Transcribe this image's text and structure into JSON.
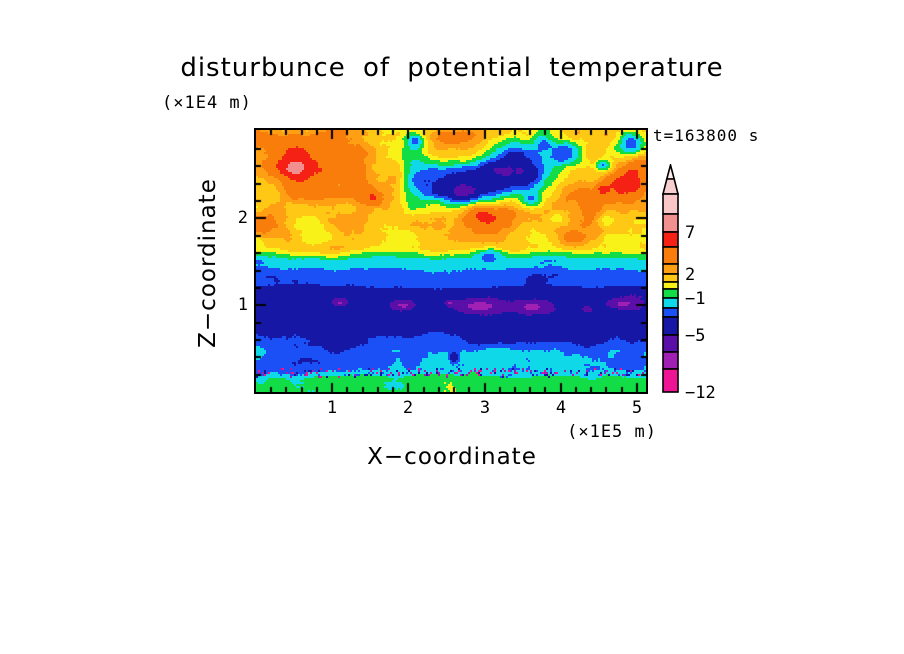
{
  "chart_data": {
    "type": "filled-contour",
    "title": "disturbunce of potential temperature",
    "y_units_label": "(×1E4 m)",
    "x_units_label": "(×1E5 m)",
    "xlabel": "X−coordinate",
    "ylabel": "Z−coordinate",
    "time_label": "t=163800 s",
    "x_range": [
      0,
      5.12
    ],
    "z_range": [
      0,
      3.02
    ],
    "x_major_ticks": [
      "1",
      "2",
      "3",
      "4",
      "5"
    ],
    "x_minor_step": 0.2,
    "z_major_ticks": [
      "1",
      "2"
    ],
    "z_minor_step": 0.2,
    "palette": {
      "levels": [
        9,
        7,
        5,
        3,
        2,
        1,
        0,
        -1,
        -2,
        -3,
        -5,
        -7,
        -9
      ],
      "colors": [
        "#F9C7C7",
        "#F29090",
        "#F52114",
        "#F87D0A",
        "#FFA014",
        "#FFC814",
        "#F8F218",
        "#12DC46",
        "#0FD9E8",
        "#1A50F5",
        "#1717A6",
        "#5A10A8",
        "#A020B4",
        "#EE1493"
      ]
    },
    "colorbar": {
      "segment_heights": [
        20,
        18,
        15,
        17,
        10,
        8,
        7,
        9,
        10,
        9,
        18,
        17,
        17,
        23
      ],
      "arrow_tip_color": "#FDEDED",
      "arrow_base_color": "#F7CFCF",
      "labels": [
        {
          "text": "7",
          "after_segment": 2
        },
        {
          "text": "2",
          "after_segment": 5
        },
        {
          "text": "−1",
          "after_segment": 8
        },
        {
          "text": "−5",
          "after_segment": 11
        },
        {
          "text": "−12",
          "after_segment": 14
        }
      ]
    },
    "field": {
      "base_profile": [
        [
          0,
          -0.5
        ],
        [
          0.14,
          -0.5
        ],
        [
          0.26,
          -1.9
        ],
        [
          0.46,
          -1.9
        ],
        [
          0.62,
          -2.9
        ],
        [
          0.8,
          -4.4
        ],
        [
          1.12,
          -4.4
        ],
        [
          1.24,
          -2.6
        ],
        [
          1.36,
          -2.6
        ],
        [
          1.46,
          -1.6
        ],
        [
          1.52,
          -1.6
        ],
        [
          1.66,
          1.4
        ],
        [
          3.02,
          1.4
        ]
      ],
      "amp_profile": [
        [
          0,
          0.55
        ],
        [
          0.18,
          0.75
        ],
        [
          0.5,
          0.85
        ],
        [
          0.72,
          0.5
        ],
        [
          0.82,
          0.42
        ],
        [
          1.14,
          0.42
        ],
        [
          1.3,
          0.45
        ],
        [
          1.5,
          0.5
        ],
        [
          1.62,
          0.9
        ],
        [
          1.8,
          1.35
        ],
        [
          3.02,
          1.35
        ]
      ],
      "noise": {
        "z_stretch": 1.6,
        "octaves": [
          {
            "scale": 0.62,
            "amp": 1.0
          },
          {
            "scale": 0.26,
            "amp": 0.55
          },
          {
            "scale": 0.085,
            "amp": 0.22
          }
        ]
      },
      "dither": 0.14,
      "features": [
        [
          0.55,
          2.62,
          0.62,
          0.36,
          3.4
        ],
        [
          0.5,
          2.58,
          0.17,
          0.11,
          2.6
        ],
        [
          1.48,
          2.32,
          0.45,
          0.28,
          2.4
        ],
        [
          1.55,
          2.22,
          0.12,
          0.08,
          2.6
        ],
        [
          0.85,
          2.98,
          0.4,
          0.14,
          1.6
        ],
        [
          0.12,
          2.9,
          0.18,
          0.12,
          1.2
        ],
        [
          2.55,
          2.97,
          0.32,
          0.11,
          2.0
        ],
        [
          1.85,
          2.5,
          0.15,
          0.22,
          1.8
        ],
        [
          2.6,
          1.95,
          0.6,
          0.18,
          2.0
        ],
        [
          3.15,
          2.08,
          0.5,
          0.17,
          2.4
        ],
        [
          2.97,
          2.03,
          0.13,
          0.08,
          1.4
        ],
        [
          0.25,
          1.95,
          0.3,
          0.16,
          1.8
        ],
        [
          0.7,
          1.8,
          0.4,
          0.1,
          1.2
        ],
        [
          0.95,
          1.62,
          0.25,
          0.08,
          1.0
        ],
        [
          4.3,
          2.28,
          0.6,
          0.26,
          2.4
        ],
        [
          3.85,
          1.95,
          0.32,
          0.16,
          1.6
        ],
        [
          4.15,
          1.77,
          0.18,
          0.1,
          2.2
        ],
        [
          4.9,
          2.42,
          0.24,
          0.17,
          3.2
        ],
        [
          4.55,
          2.34,
          0.09,
          0.06,
          2.4
        ],
        [
          5.08,
          2.62,
          0.16,
          0.11,
          1.8
        ],
        [
          3.05,
          2.42,
          0.75,
          0.26,
          -5.6
        ],
        [
          3.45,
          2.6,
          0.35,
          0.16,
          -4.0
        ],
        [
          2.5,
          2.38,
          0.4,
          0.2,
          -3.2
        ],
        [
          2.7,
          2.26,
          0.2,
          0.1,
          -3.0
        ],
        [
          4.1,
          2.77,
          0.23,
          0.15,
          -4.6
        ],
        [
          4.92,
          2.88,
          0.2,
          0.14,
          -5.0
        ],
        [
          4.56,
          2.61,
          0.09,
          0.07,
          -3.8
        ],
        [
          3.76,
          2.89,
          0.16,
          0.1,
          -3.0
        ],
        [
          2.1,
          2.9,
          0.12,
          0.09,
          -2.4
        ],
        [
          0.78,
          1.79,
          0.3,
          0.11,
          -2.6
        ],
        [
          3.05,
          1.6,
          0.2,
          0.08,
          -2.2
        ],
        [
          3.62,
          2.19,
          0.15,
          0.09,
          -2.6
        ],
        [
          4.6,
          1.98,
          0.15,
          0.08,
          -2.6
        ],
        [
          3.95,
          2.0,
          0.12,
          0.07,
          -2.4
        ],
        [
          1.15,
          2.12,
          0.22,
          0.11,
          -1.6
        ],
        [
          3.3,
          2.82,
          0.3,
          0.12,
          -1.8
        ],
        [
          4.85,
          1.7,
          0.35,
          0.12,
          -1.6
        ],
        [
          2.15,
          2.55,
          0.3,
          0.35,
          -1.6
        ],
        [
          0.03,
          1.75,
          0.08,
          0.08,
          -1.6
        ],
        [
          2.56,
          3.12,
          2.6,
          0.1,
          -1.8
        ],
        [
          1.92,
          1.0,
          0.15,
          0.06,
          -3.4
        ],
        [
          2.95,
          0.99,
          0.3,
          0.08,
          -3.6
        ],
        [
          3.62,
          0.98,
          0.22,
          0.06,
          -3.2
        ],
        [
          4.82,
          1.02,
          0.17,
          0.05,
          -3.0
        ],
        [
          1.1,
          1.03,
          0.07,
          0.035,
          -2.8
        ],
        [
          2.55,
          1.02,
          0.06,
          0.03,
          -2.8
        ],
        [
          4.35,
          0.95,
          0.05,
          0.03,
          -2.6
        ],
        [
          0.07,
          0.24,
          0.1,
          0.13,
          -0.9
        ],
        [
          1.8,
          0.06,
          0.28,
          0.07,
          -1.1
        ],
        [
          2.6,
          0.4,
          0.05,
          0.05,
          -3.3
        ],
        [
          0.95,
          0.6,
          0.25,
          0.1,
          -1.2
        ],
        [
          3.05,
          0.58,
          0.3,
          0.1,
          -1.1
        ],
        [
          4.35,
          0.6,
          0.25,
          0.1,
          -1.0
        ]
      ],
      "speckles": {
        "seed": 11,
        "count": 260,
        "z_center": 0.225,
        "z_jitter": 0.045,
        "colors": [
          "#1717A6",
          "#1A50F5",
          "#A020B4",
          "#EE1493"
        ]
      }
    }
  }
}
